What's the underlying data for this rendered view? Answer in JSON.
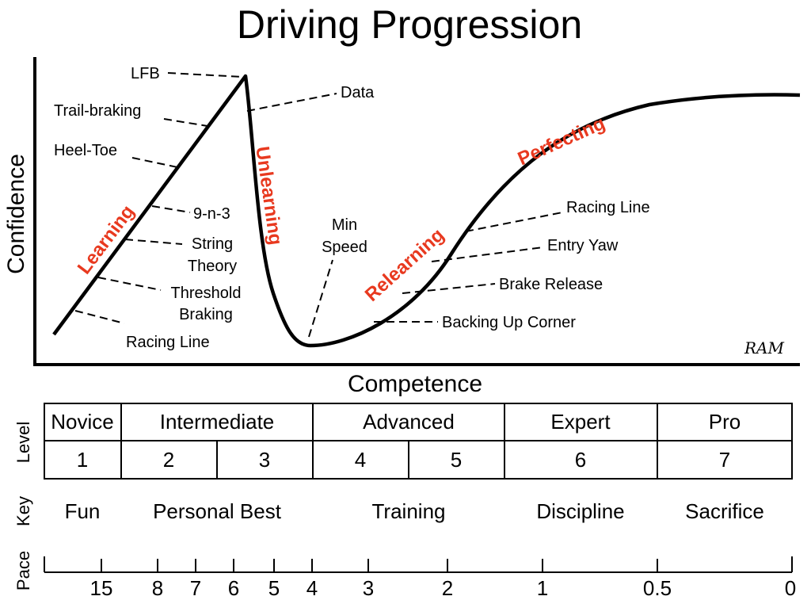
{
  "title": "Driving Progression",
  "axes": {
    "y_label": "Confidence",
    "x_label": "Competence"
  },
  "phases": {
    "learning": "Learning",
    "unlearning": "Unlearning",
    "relearning": "Relearning",
    "perfecting": "Perfecting"
  },
  "learning_skills": {
    "lfb": "LFB",
    "trail_braking": "Trail-braking",
    "heel_toe": "Heel-Toe",
    "nine_n_three": "9-n-3",
    "string_theory_1": "String",
    "string_theory_2": "Theory",
    "threshold_1": "Threshold",
    "threshold_2": "Braking",
    "racing_line": "Racing Line"
  },
  "unlearning_notes": {
    "data": "Data",
    "min_speed_1": "Min",
    "min_speed_2": "Speed"
  },
  "relearning_skills": {
    "racing_line": "Racing Line",
    "entry_yaw": "Entry Yaw",
    "brake_release": "Brake Release",
    "backing_up_corner": "Backing Up Corner"
  },
  "signature": "RAM",
  "table": {
    "row_labels": {
      "level": "Level",
      "key": "Key",
      "pace": "Pace"
    },
    "levels": [
      "Novice",
      "Intermediate",
      "Advanced",
      "Expert",
      "Pro"
    ],
    "numbers": [
      "1",
      "2",
      "3",
      "4",
      "5",
      "6",
      "7"
    ],
    "keys": [
      "Fun",
      "Personal Best",
      "Training",
      "Discipline",
      "Sacrifice"
    ],
    "pace": [
      "15",
      "8",
      "7",
      "6",
      "5",
      "4",
      "3",
      "2",
      "1",
      "0.5",
      "0"
    ]
  }
}
